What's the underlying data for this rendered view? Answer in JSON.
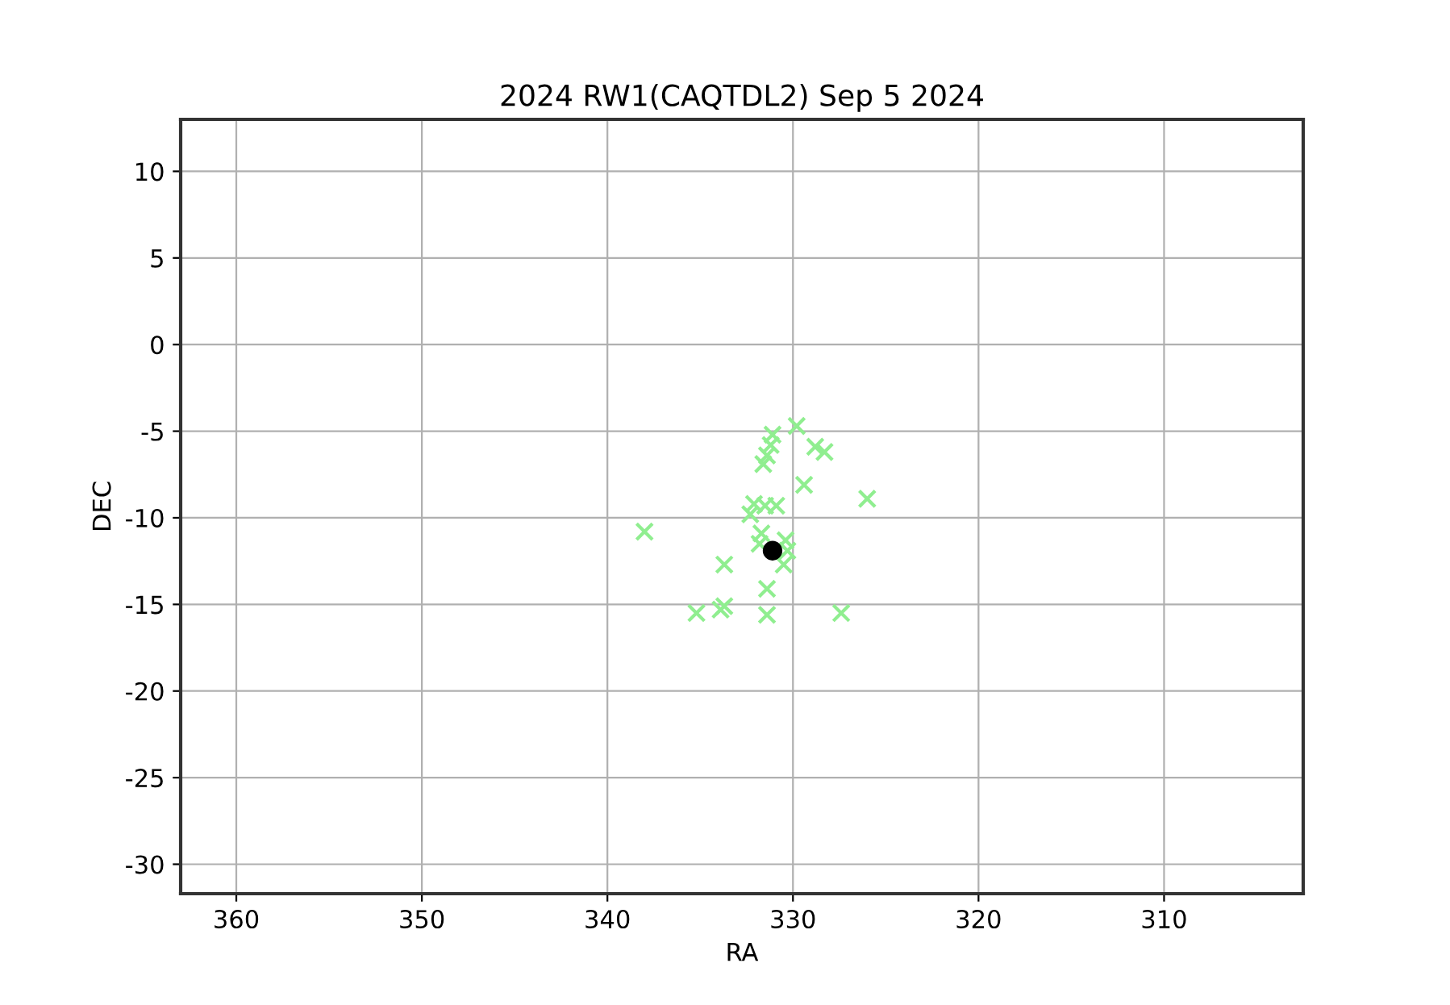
{
  "chart_data": {
    "type": "scatter",
    "title": "2024 RW1(CAQTDL2) Sep 5 2024",
    "xlabel": "RA",
    "ylabel": "DEC",
    "xlim": [
      363,
      302.5
    ],
    "ylim": [
      -31.7,
      13
    ],
    "xticks": [
      360,
      350,
      340,
      330,
      320,
      310
    ],
    "yticks": [
      -30,
      -25,
      -20,
      -15,
      -10,
      -5,
      0,
      5,
      10
    ],
    "grid": true,
    "series": [
      {
        "color": "#90ee90",
        "marker": "cross",
        "x": [
          329.8,
          331.1,
          331.2,
          331.4,
          331.6,
          328.8,
          328.3,
          329.4,
          326.0,
          332.1,
          331.5,
          330.9,
          332.3,
          338.0,
          331.7,
          331.8,
          330.4,
          330.3,
          330.5,
          333.7,
          331.4,
          335.2,
          333.9,
          333.7,
          331.4,
          327.4
        ],
        "values": [
          -4.7,
          -5.2,
          -5.8,
          -6.4,
          -6.9,
          -5.9,
          -6.2,
          -8.1,
          -8.9,
          -9.2,
          -9.3,
          -9.3,
          -9.8,
          -10.8,
          -10.9,
          -11.5,
          -11.3,
          -11.9,
          -12.7,
          -12.7,
          -14.1,
          -15.5,
          -15.3,
          -15.1,
          -15.6,
          -15.5
        ]
      },
      {
        "color": "#000000",
        "marker": "circle",
        "x": [
          331.1
        ],
        "values": [
          -11.9
        ]
      }
    ]
  }
}
